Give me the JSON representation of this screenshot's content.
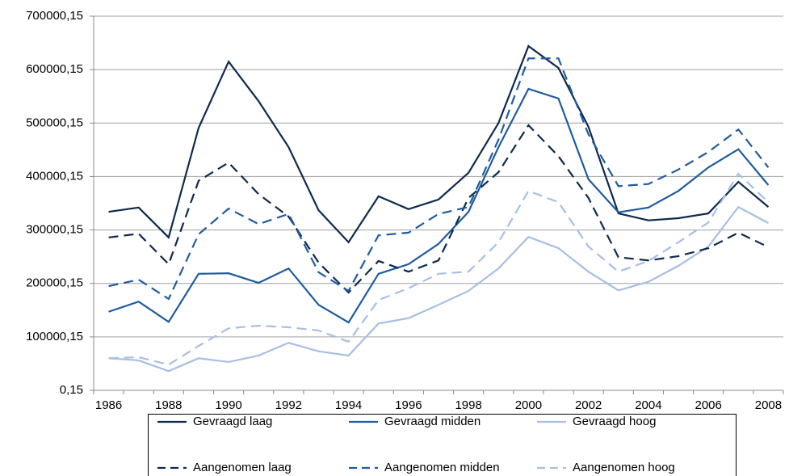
{
  "chart_data": {
    "type": "line",
    "categories": [
      "1986",
      null,
      "1988",
      null,
      "1990",
      null,
      "1992",
      null,
      "1994",
      null,
      "1996",
      null,
      "1998",
      null,
      "2000",
      null,
      "2002",
      null,
      "2004",
      null,
      "2006",
      null,
      "2008"
    ],
    "ylim": [
      0.15,
      700000.15
    ],
    "yticks": [
      {
        "value": 0.15,
        "label": "0,15"
      },
      {
        "value": 100000.15,
        "label": "100000,15"
      },
      {
        "value": 200000.15,
        "label": "200000,15"
      },
      {
        "value": 300000.15,
        "label": "300000,15"
      },
      {
        "value": 400000.15,
        "label": "400000,15"
      },
      {
        "value": 500000.15,
        "label": "500000,15"
      },
      {
        "value": 600000.15,
        "label": "600000,15"
      },
      {
        "value": 700000.15,
        "label": "700000,15"
      }
    ],
    "grid": true,
    "legend": "bottom",
    "series": [
      {
        "name": "Gevraagd laag",
        "color": "#0f2a4d",
        "dash": false,
        "values": [
          334000,
          342000,
          286000,
          491000,
          615000,
          541000,
          455000,
          337000,
          277000,
          363000,
          339000,
          357000,
          407000,
          500000,
          644000,
          603000,
          493000,
          331000,
          318000,
          322000,
          331000,
          390000,
          343000
        ]
      },
      {
        "name": "Gevraagd midden",
        "color": "#1f5c9e",
        "dash": false,
        "values": [
          147000,
          166000,
          128000,
          218000,
          219000,
          201000,
          228000,
          160000,
          127000,
          218000,
          236000,
          274000,
          334000,
          455000,
          564000,
          546000,
          395000,
          333000,
          342000,
          373000,
          417000,
          451000,
          384000
        ]
      },
      {
        "name": "Gevraagd hoog",
        "color": "#a7bfe2",
        "dash": false,
        "values": [
          60000,
          56000,
          36000,
          60000,
          53000,
          65000,
          89000,
          73000,
          65000,
          125000,
          135000,
          160000,
          186000,
          228000,
          287000,
          266000,
          222000,
          187000,
          203000,
          233000,
          269000,
          343000,
          313000
        ]
      },
      {
        "name": "Aangenomen laag",
        "color": "#0f2a4d",
        "dash": true,
        "values": [
          286000,
          293000,
          236000,
          392000,
          426000,
          367000,
          325000,
          239000,
          183000,
          242000,
          222000,
          243000,
          360000,
          408000,
          496000,
          438000,
          360000,
          249000,
          243000,
          251000,
          266000,
          295000,
          268000
        ]
      },
      {
        "name": "Aangenomen midden",
        "color": "#1f5c9e",
        "dash": true,
        "values": [
          195000,
          207000,
          171000,
          292000,
          340000,
          311000,
          330000,
          221000,
          186000,
          290000,
          295000,
          330000,
          343000,
          469000,
          621000,
          621000,
          479000,
          382000,
          386000,
          413000,
          446000,
          488000,
          417000
        ]
      },
      {
        "name": "Aangenomen hoog",
        "color": "#a7bfe2",
        "dash": true,
        "values": [
          60000,
          62000,
          48000,
          83000,
          116000,
          121000,
          118000,
          112000,
          91000,
          169000,
          191000,
          218000,
          222000,
          277000,
          373000,
          352000,
          269000,
          222000,
          242000,
          277000,
          314000,
          405000,
          352000
        ]
      }
    ]
  }
}
